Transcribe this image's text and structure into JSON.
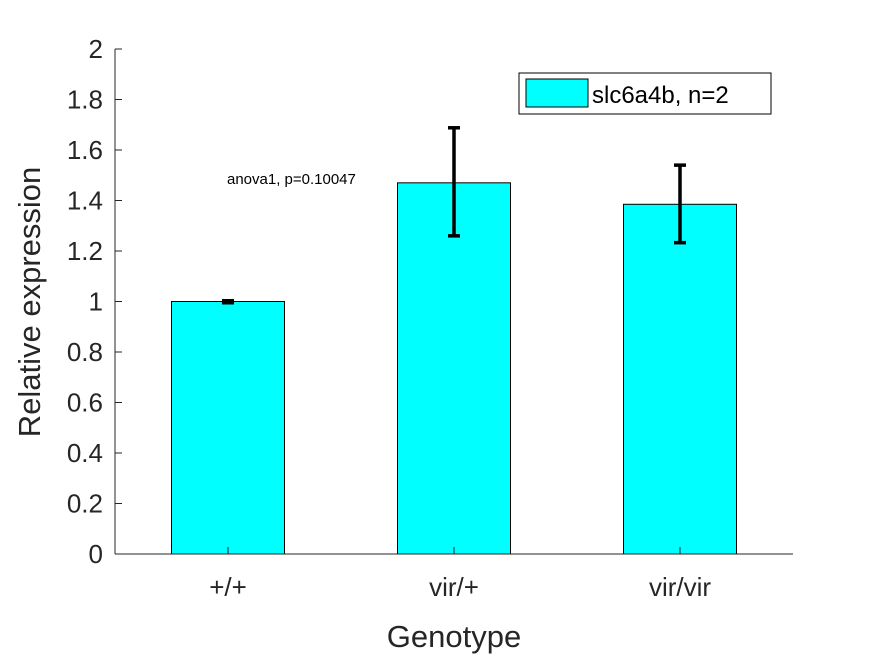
{
  "chart_data": {
    "type": "bar",
    "categories": [
      "+/+",
      "vir/+",
      "vir/vir"
    ],
    "series": [
      {
        "name": "slc6a4b, n=2",
        "values": [
          1.0,
          1.47,
          1.385
        ],
        "error_low": [
          0.995,
          1.26,
          1.233
        ],
        "error_high": [
          1.003,
          1.688,
          1.54
        ]
      }
    ],
    "xlabel": "Genotype",
    "ylabel": "Relative expression",
    "ylim": [
      0,
      2
    ],
    "yticks": [
      "0",
      "0.2",
      "0.4",
      "0.6",
      "0.8",
      "1",
      "1.2",
      "1.4",
      "1.6",
      "1.8",
      "2"
    ],
    "annotation": "anova1, p=0.10047",
    "legend_position": "top-right",
    "grid": false,
    "colors": {
      "bar": "#00FFFF",
      "edge": "#000000",
      "errorbar": "#000000",
      "axis": "#262626"
    }
  }
}
